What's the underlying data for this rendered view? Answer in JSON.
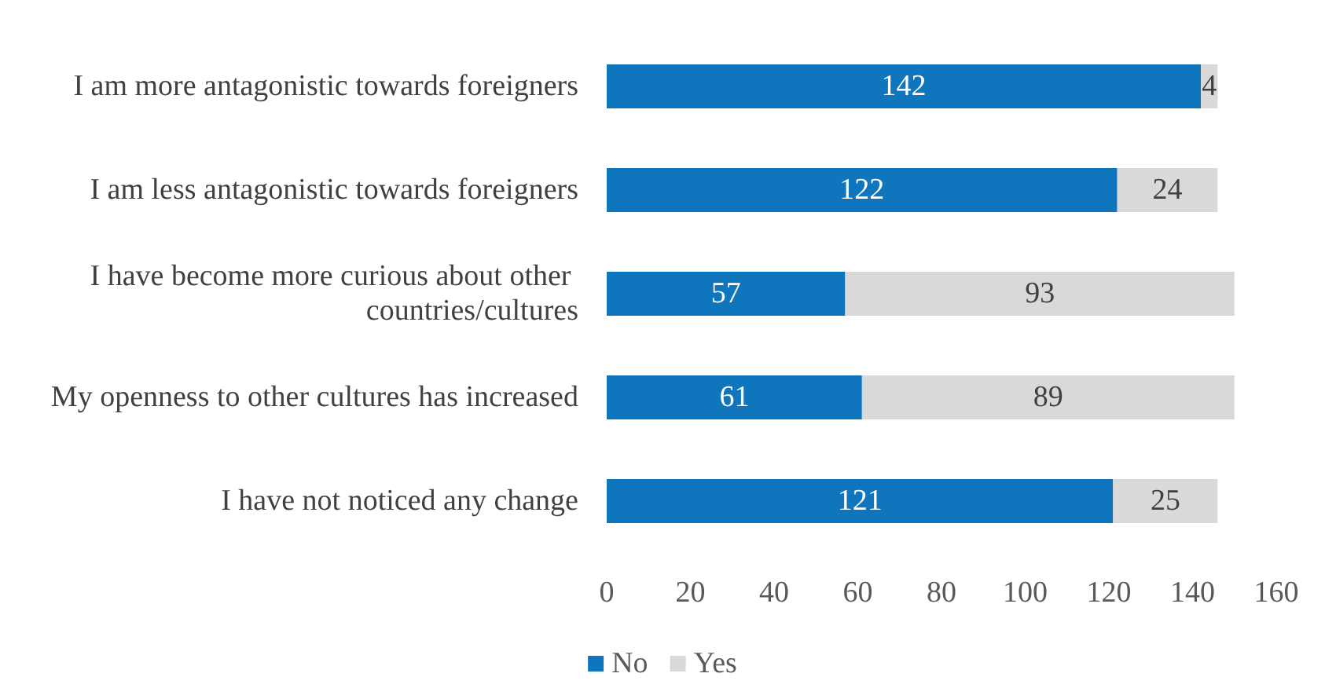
{
  "chart_data": {
    "type": "bar",
    "orientation": "horizontal",
    "stacked": true,
    "categories": [
      "I am more antagonistic towards foreigners",
      "I am less antagonistic towards foreigners",
      "I have become more curious about other countries/cultures",
      "My openness to other cultures has increased",
      "I have not noticed any change"
    ],
    "series": [
      {
        "name": "No",
        "color": "#0f75bd",
        "values": [
          142,
          122,
          57,
          61,
          121
        ]
      },
      {
        "name": "Yes",
        "color": "#d9d9d9",
        "values": [
          4,
          24,
          93,
          89,
          25
        ]
      }
    ],
    "xlim": [
      0,
      160
    ],
    "xticks": [
      0,
      20,
      40,
      60,
      80,
      100,
      120,
      140,
      160
    ],
    "data_labels": true,
    "grid": false,
    "legend": "bottom"
  }
}
